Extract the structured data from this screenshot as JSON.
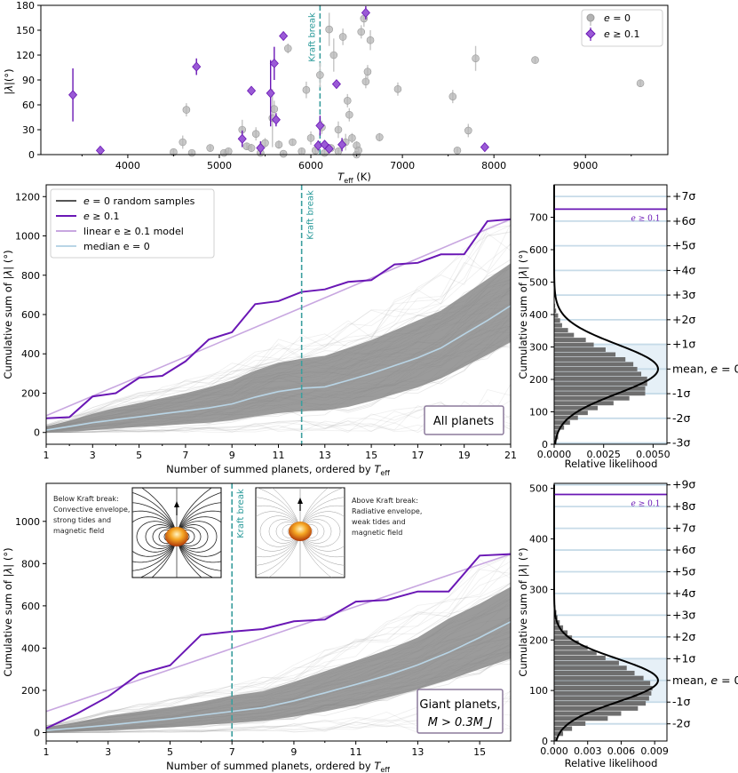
{
  "colors": {
    "purple": "#6a17b5",
    "purple_light": "#c8a7e0",
    "gray": "#a7a7a7",
    "gray_dark": "#5a5a5a",
    "band": "#8a8a8a",
    "median": "#b9d5e6",
    "kraft": "#3a9e9e",
    "sigma_line": "#c7dbe8"
  },
  "chart_data": [
    {
      "id": "top",
      "type": "scatter",
      "xlabel": "T_eff (K)",
      "ylabel": "|λ| (°)",
      "xlim": [
        3050,
        9900
      ],
      "ylim": [
        0,
        180
      ],
      "xticks": [
        "4000",
        "5000",
        "6000",
        "7000",
        "8000",
        "9000"
      ],
      "yticks": [
        "0",
        "30",
        "60",
        "90",
        "120",
        "150",
        "180"
      ],
      "kraft_break": {
        "x": 6100,
        "label": "Kraft break"
      },
      "legend": [
        {
          "label_pre": "e",
          "label_post": " = 0",
          "series": "e0"
        },
        {
          "label_pre": "e",
          "label_post": " ≥ 0.1",
          "series": "ecc"
        }
      ],
      "series": [
        {
          "name": "e = 0",
          "key": "e0",
          "points": [
            [
              4500,
              3,
              3
            ],
            [
              4600,
              15,
              8
            ],
            [
              4640,
              54,
              8
            ],
            [
              4700,
              2,
              2
            ],
            [
              4900,
              8,
              4
            ],
            [
              5050,
              2,
              2
            ],
            [
              5100,
              4,
              3
            ],
            [
              5250,
              30,
              12
            ],
            [
              5300,
              10,
              4
            ],
            [
              5350,
              8,
              5
            ],
            [
              5400,
              25,
              8
            ],
            [
              5450,
              2,
              3
            ],
            [
              5500,
              14,
              6
            ],
            [
              5580,
              44,
              35
            ],
            [
              5600,
              55,
              10
            ],
            [
              5650,
              12,
              5
            ],
            [
              5700,
              1,
              2
            ],
            [
              5750,
              128,
              6
            ],
            [
              5800,
              15,
              4
            ],
            [
              5900,
              4,
              3
            ],
            [
              5950,
              78,
              10
            ],
            [
              6000,
              20,
              8
            ],
            [
              6050,
              5,
              4
            ],
            [
              6100,
              96,
              15
            ],
            [
              6120,
              33,
              8
            ],
            [
              6150,
              2,
              3
            ],
            [
              6200,
              151,
              20
            ],
            [
              6220,
              8,
              3
            ],
            [
              6250,
              120,
              20
            ],
            [
              6300,
              4,
              3
            ],
            [
              6300,
              30,
              10
            ],
            [
              6350,
              142,
              10
            ],
            [
              6380,
              15,
              10
            ],
            [
              6400,
              65,
              8
            ],
            [
              6420,
              48,
              8
            ],
            [
              6450,
              20,
              6
            ],
            [
              6500,
              0,
              3
            ],
            [
              6500,
              11,
              5
            ],
            [
              6520,
              5,
              4
            ],
            [
              6550,
              148,
              8
            ],
            [
              6580,
              164,
              10
            ],
            [
              6600,
              88,
              8
            ],
            [
              6620,
              100,
              8
            ],
            [
              6650,
              138,
              12
            ],
            [
              6750,
              21,
              5
            ],
            [
              6950,
              79,
              8
            ],
            [
              7550,
              70,
              8
            ],
            [
              7600,
              5,
              3
            ],
            [
              7720,
              29,
              8
            ],
            [
              7800,
              116,
              15
            ],
            [
              8450,
              114,
              4
            ],
            [
              9600,
              86,
              4
            ]
          ]
        },
        {
          "name": "e ≥ 0.1",
          "key": "ecc",
          "points": [
            [
              3400,
              72,
              32
            ],
            [
              3700,
              5,
              3
            ],
            [
              4750,
              106,
              10
            ],
            [
              5250,
              19,
              10
            ],
            [
              5350,
              77,
              5
            ],
            [
              5450,
              8,
              8
            ],
            [
              5560,
              74,
              40
            ],
            [
              5600,
              110,
              20
            ],
            [
              5620,
              42,
              8
            ],
            [
              5700,
              143,
              4
            ],
            [
              6080,
              11,
              6
            ],
            [
              6100,
              35,
              12
            ],
            [
              6150,
              12,
              5
            ],
            [
              6200,
              7,
              4
            ],
            [
              6280,
              85,
              4
            ],
            [
              6340,
              12,
              8
            ],
            [
              6600,
              171,
              8
            ],
            [
              7900,
              9,
              4
            ]
          ]
        }
      ]
    },
    {
      "id": "middle",
      "type": "line",
      "xlabel": "Number of summed planets, ordered by T_eff",
      "ylabel": "Cumulative sum of |λ| (°)",
      "xlim": [
        1,
        21
      ],
      "ylim": [
        -60,
        1260
      ],
      "xticks": [
        "1",
        "3",
        "5",
        "7",
        "9",
        "11",
        "13",
        "15",
        "17",
        "19",
        "21"
      ],
      "yticks": [
        "0",
        "200",
        "400",
        "600",
        "800",
        "1000",
        "1200"
      ],
      "kraft_break": {
        "x": 12,
        "label": "Kraft break"
      },
      "box_label": "All planets",
      "legend": [
        {
          "label_pre": "e",
          "label_post": " = 0 random samples"
        },
        {
          "label_pre": "e",
          "label_post": " ≥ 0.1"
        },
        {
          "label_pre": "linear e",
          "label_post": " ≥ 0.1 model"
        },
        {
          "label_pre": "median e",
          "label_post": " = 0"
        }
      ],
      "x": [
        1,
        2,
        3,
        4,
        5,
        6,
        7,
        8,
        9,
        10,
        11,
        12,
        13,
        14,
        15,
        16,
        17,
        18,
        19,
        20,
        21
      ],
      "ecc_series": [
        72,
        78,
        183,
        200,
        278,
        288,
        362,
        473,
        510,
        653,
        668,
        715,
        728,
        766,
        775,
        855,
        863,
        906,
        907,
        1075,
        1085
      ],
      "linear_model": [
        85,
        1085
      ],
      "median": [
        12,
        30,
        50,
        65,
        80,
        95,
        110,
        125,
        145,
        180,
        208,
        225,
        232,
        265,
        300,
        340,
        380,
        430,
        500,
        570,
        645
      ],
      "band_upper": [
        30,
        60,
        95,
        125,
        150,
        175,
        200,
        230,
        265,
        315,
        355,
        375,
        390,
        430,
        470,
        520,
        570,
        620,
        700,
        780,
        860
      ],
      "band_lower": [
        0,
        5,
        12,
        20,
        28,
        35,
        42,
        50,
        62,
        82,
        98,
        108,
        112,
        130,
        160,
        195,
        230,
        275,
        335,
        395,
        460
      ],
      "hist": {
        "xlabel": "Relative likelihood",
        "ylabel": "Cumulative sum of |λ| (°)",
        "xlim": [
          0,
          0.0057
        ],
        "ylim": [
          0,
          800
        ],
        "xticks": [
          "0.0000",
          "0.0025",
          "0.0050"
        ],
        "xtick_values": [
          0,
          0.0025,
          0.005
        ],
        "yticks": [
          "0",
          "100",
          "200",
          "300",
          "400",
          "500",
          "600",
          "700"
        ],
        "bin_start": 0,
        "bin_width": 15,
        "counts": [
          0.0001,
          0.0002,
          0.0002,
          0.0005,
          0.0008,
          0.0012,
          0.0017,
          0.0022,
          0.003,
          0.0038,
          0.0046,
          0.0046,
          0.0047,
          0.0047,
          0.0044,
          0.0042,
          0.004,
          0.0036,
          0.0031,
          0.0026,
          0.002,
          0.0016,
          0.001,
          0.0007,
          0.0004,
          0.0003,
          0.0002,
          0.0001,
          5e-05,
          2e-05
        ],
        "gauss_mean": 232,
        "gauss_sd": 76,
        "gauss_peak": 0.00525,
        "ecc_value": 725,
        "ecc_label_pre": "e",
        "ecc_label_post": " ≥ 0.1",
        "sigma_labels": [
          "-3σ",
          "-2σ",
          "-1σ",
          "mean, e = 0",
          "+1σ",
          "+2σ",
          "+3σ",
          "+4σ",
          "+5σ",
          "+6σ",
          "+7σ"
        ]
      }
    },
    {
      "id": "bottom",
      "type": "line",
      "xlabel": "Number of summed planets, ordered by T_eff",
      "ylabel": "Cumulative sum of |λ| (°)",
      "xlim": [
        1,
        16
      ],
      "ylim": [
        -40,
        1180
      ],
      "xticks": [
        "1",
        "3",
        "5",
        "7",
        "9",
        "11",
        "13",
        "15"
      ],
      "yticks": [
        "0",
        "200",
        "400",
        "600",
        "800",
        "1000"
      ],
      "kraft_break": {
        "x": 7,
        "label": "Kraft break"
      },
      "box_label_line1": "Giant planets,",
      "box_label_line2": "M > 0.3M_J",
      "below_text": [
        "Below Kraft break:",
        "Convective envelope,",
        "strong tides and",
        "magnetic field"
      ],
      "above_text": [
        "Above Kraft break:",
        "Radiative envelope,",
        "weak tides and",
        "magnetic field"
      ],
      "x": [
        1,
        2,
        3,
        4,
        5,
        6,
        7,
        8,
        9,
        10,
        11,
        12,
        13,
        14,
        15,
        16
      ],
      "ecc_series": [
        20,
        90,
        170,
        278,
        318,
        462,
        478,
        490,
        527,
        535,
        620,
        628,
        668,
        668,
        838,
        845
      ],
      "linear_model": [
        100,
        845
      ],
      "median": [
        10,
        22,
        35,
        50,
        65,
        82,
        100,
        118,
        150,
        188,
        228,
        270,
        320,
        380,
        450,
        525
      ],
      "band_upper": [
        25,
        50,
        80,
        100,
        120,
        145,
        175,
        195,
        240,
        290,
        340,
        390,
        450,
        540,
        610,
        690
      ],
      "band_lower": [
        0,
        5,
        10,
        18,
        25,
        35,
        45,
        55,
        75,
        100,
        130,
        165,
        205,
        250,
        300,
        350
      ],
      "hist": {
        "xlabel": "Relative likelihood",
        "ylabel": "Cumulative sum of |λ| (°)",
        "xlim": [
          0,
          0.0101
        ],
        "ylim": [
          0,
          510
        ],
        "xticks": [
          "0.000",
          "0.003",
          "0.006",
          "0.009"
        ],
        "xtick_values": [
          0,
          0.003,
          0.006,
          0.009
        ],
        "yticks": [
          "0",
          "100",
          "200",
          "300",
          "400",
          "500"
        ],
        "bin_start": 0,
        "bin_width": 10,
        "counts": [
          0.0002,
          0.0008,
          0.0016,
          0.0028,
          0.0048,
          0.006,
          0.0075,
          0.0082,
          0.0085,
          0.0087,
          0.0088,
          0.0086,
          0.008,
          0.0072,
          0.0065,
          0.0058,
          0.0046,
          0.0038,
          0.003,
          0.0022,
          0.0016,
          0.0012,
          0.0008,
          0.0005,
          0.0003,
          0.0002,
          0.0001,
          5e-05
        ],
        "gauss_mean": 120,
        "gauss_sd": 43,
        "gauss_peak": 0.0093,
        "ecc_value": 488,
        "ecc_label_pre": "e",
        "ecc_label_post": " ≥ 0.1",
        "sigma_labels": [
          "-2σ",
          "-1σ",
          "mean, e = 0",
          "+1σ",
          "+2σ",
          "+3σ",
          "+4σ",
          "+5σ",
          "+6σ",
          "+7σ",
          "+8σ",
          "+9σ"
        ]
      }
    }
  ]
}
